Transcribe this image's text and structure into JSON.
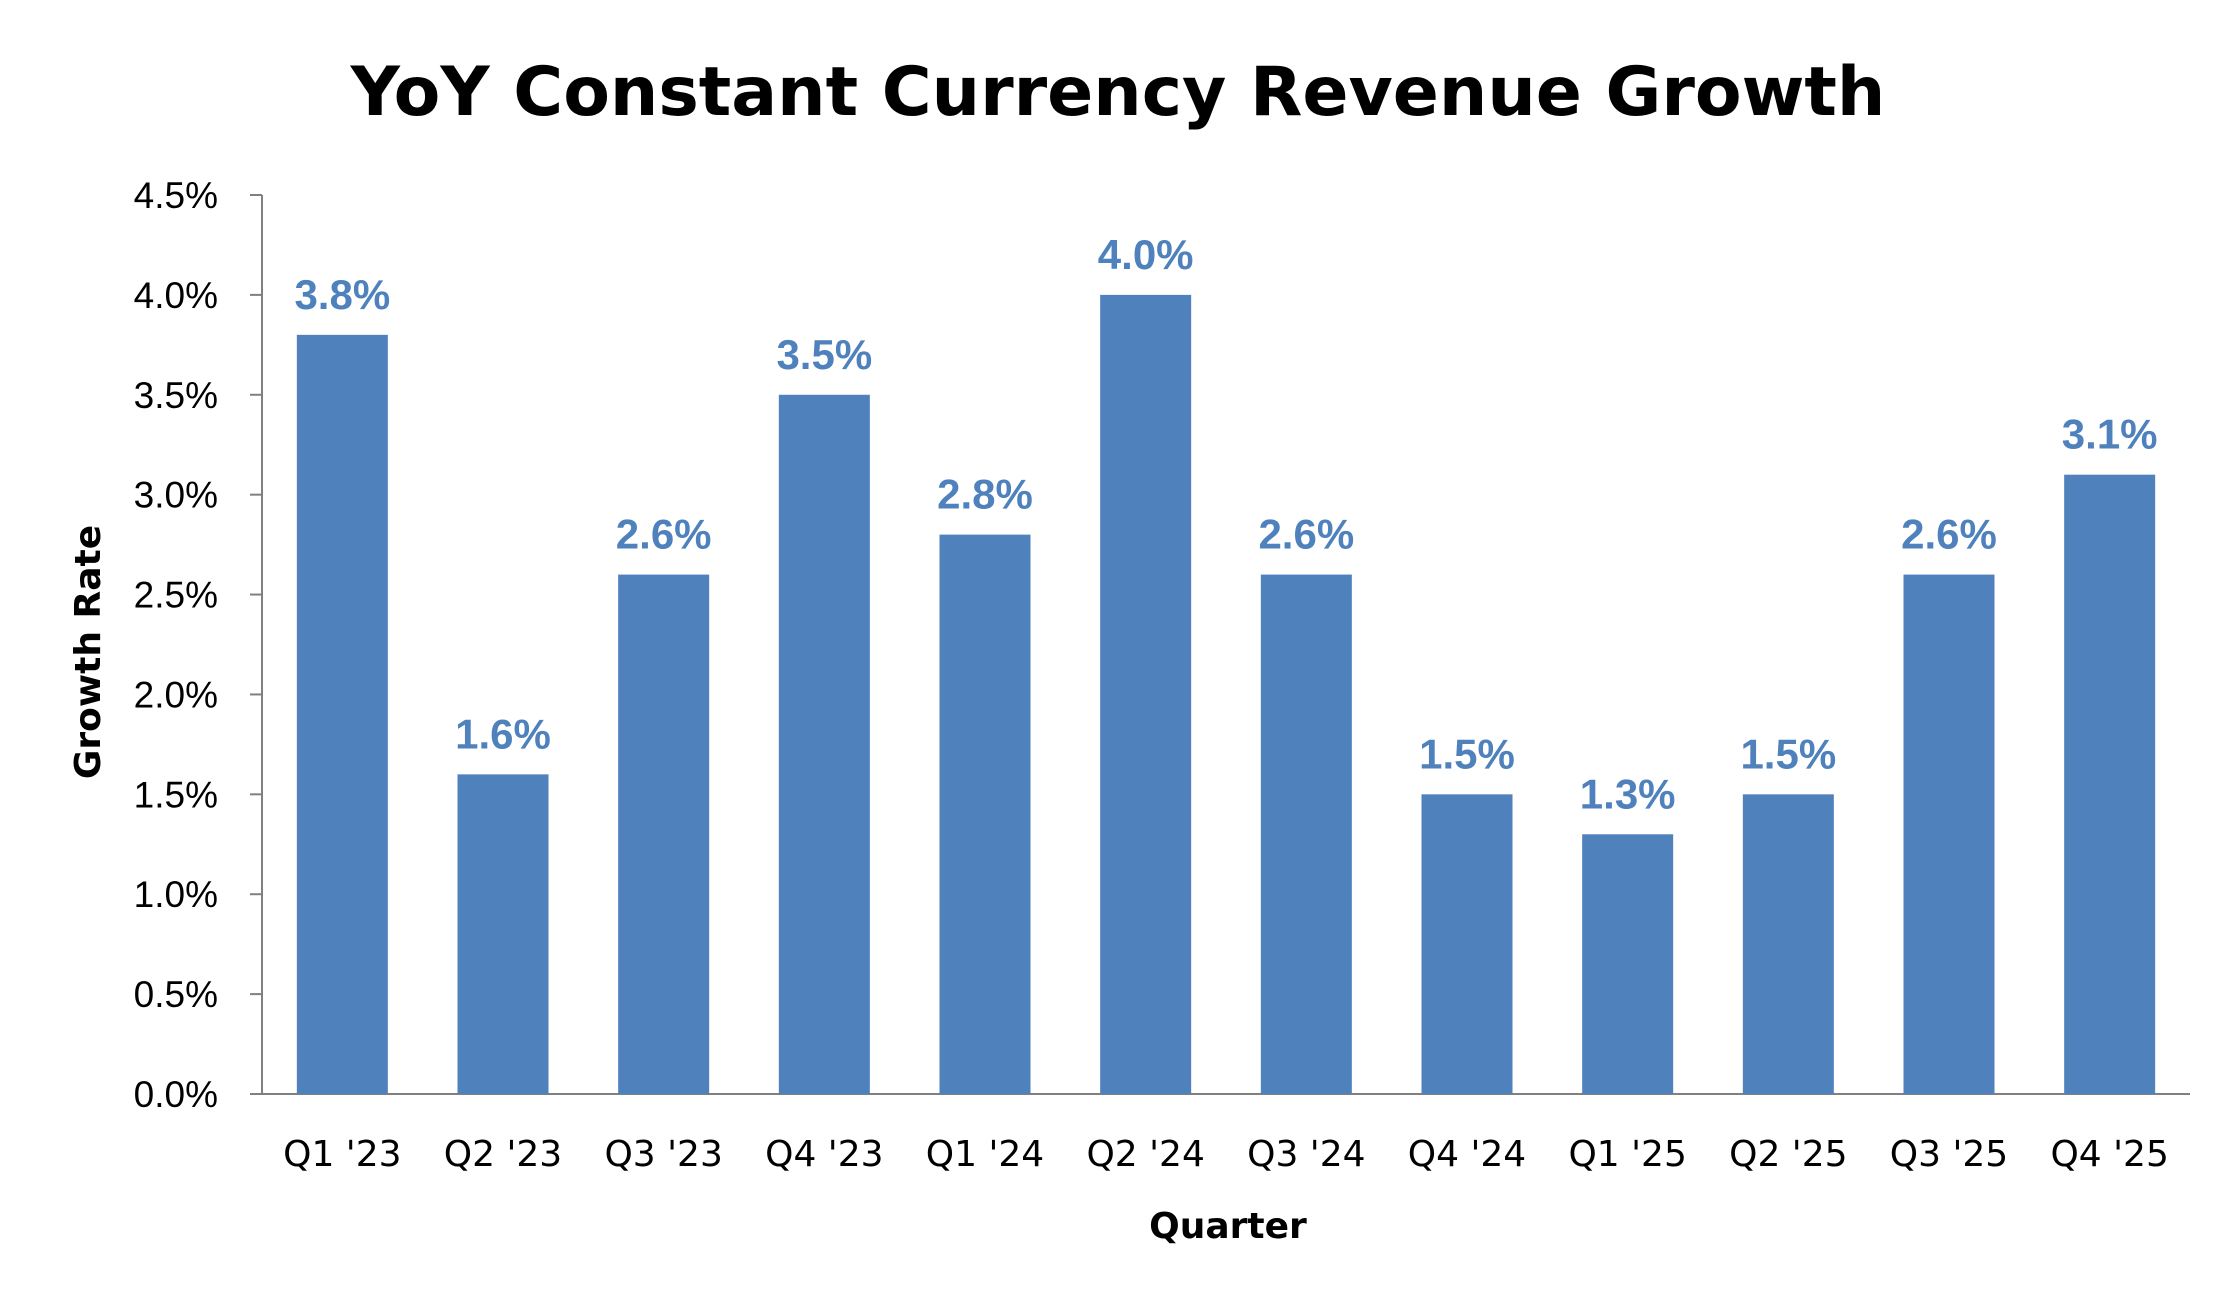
{
  "chart_data": {
    "type": "bar",
    "title": "YoY Constant Currency Revenue Growth",
    "xlabel": "Quarter",
    "ylabel": "Growth Rate",
    "categories": [
      "Q1 '23",
      "Q2 '23",
      "Q3 '23",
      "Q4 '23",
      "Q1 '24",
      "Q2 '24",
      "Q3 '24",
      "Q4 '24",
      "Q1 '25",
      "Q2 '25",
      "Q3 '25",
      "Q4 '25"
    ],
    "values": [
      3.8,
      1.6,
      2.6,
      3.5,
      2.8,
      4.0,
      2.6,
      1.5,
      1.3,
      1.5,
      2.6,
      3.1
    ],
    "data_labels": [
      "3.8%",
      "1.6%",
      "2.6%",
      "3.5%",
      "2.8%",
      "4.0%",
      "2.6%",
      "1.5%",
      "1.3%",
      "1.5%",
      "2.6%",
      "3.1%"
    ],
    "ylim": [
      0,
      4.5
    ],
    "yticks": [
      0,
      0.5,
      1.0,
      1.5,
      2.0,
      2.5,
      3.0,
      3.5,
      4.0,
      4.5
    ],
    "ytick_labels": [
      "0.0%",
      "0.5%",
      "1.0%",
      "1.5%",
      "2.0%",
      "2.5%",
      "3.0%",
      "3.5%",
      "4.0%",
      "4.5%"
    ],
    "grid": false,
    "legend": "none",
    "bar_color": "#4f81bd",
    "label_color": "#4f81bd",
    "axis_color": "#808080"
  }
}
